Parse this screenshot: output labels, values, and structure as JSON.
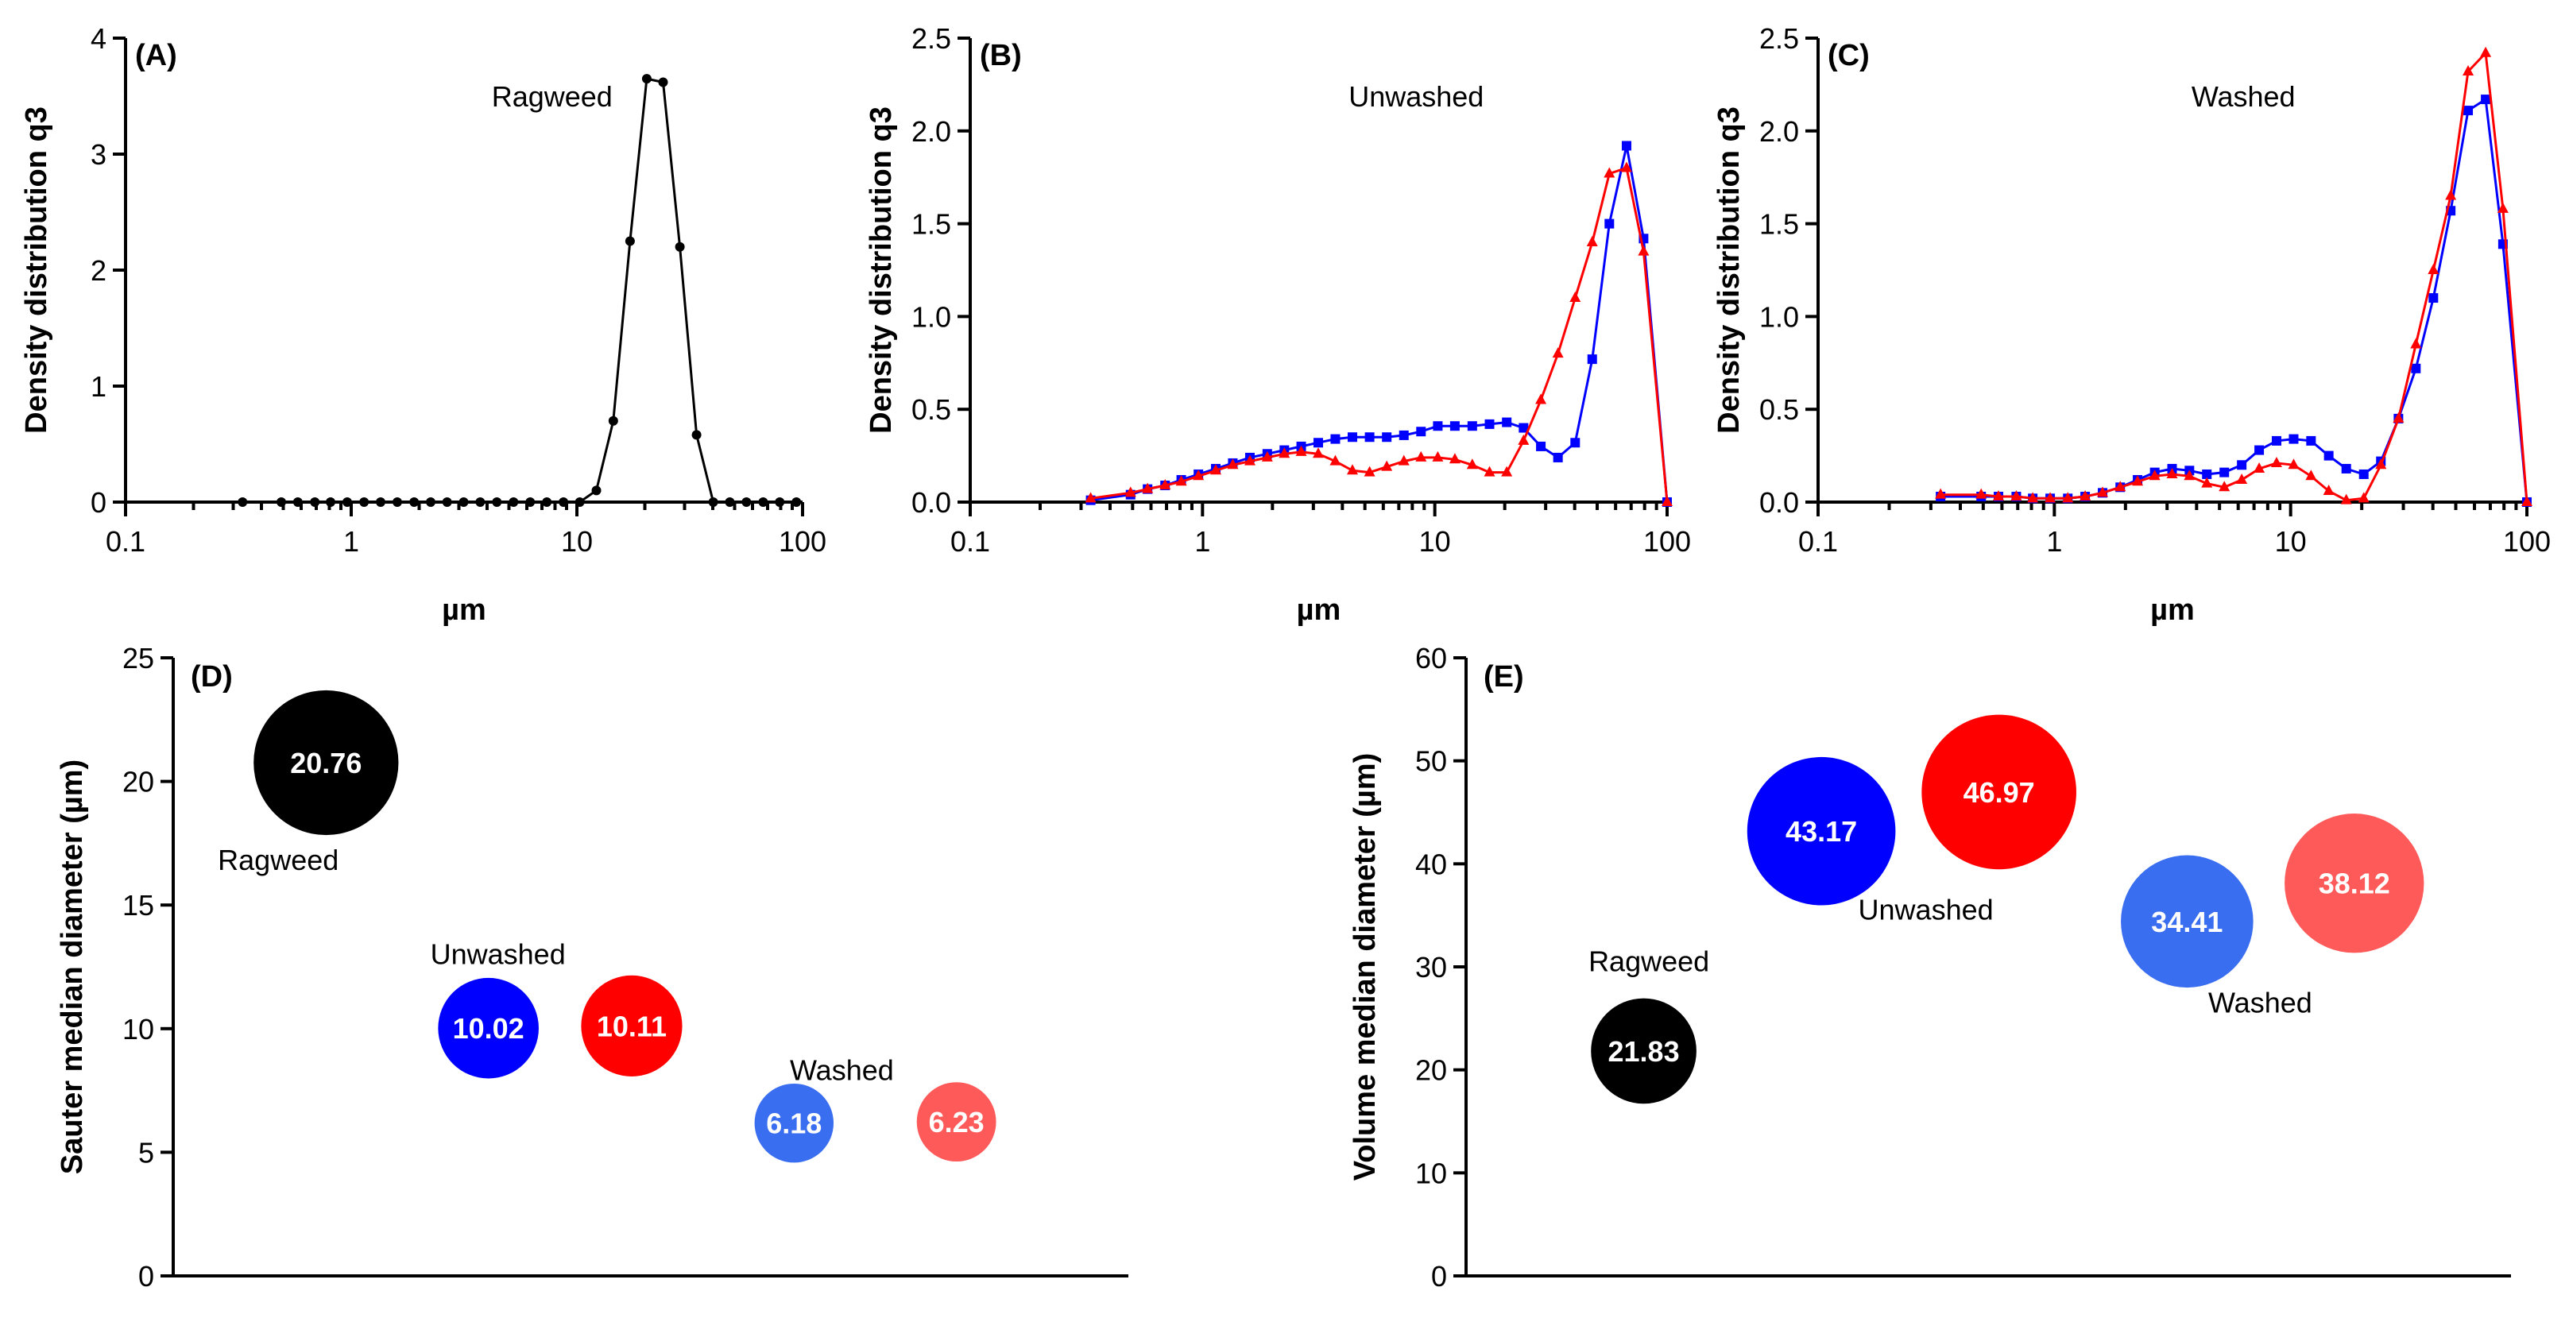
{
  "colors": {
    "ragweed": "#000000",
    "unwashed_a": "#0000ff",
    "unwashed_b": "#ff0000",
    "washed_a": "#3a6ef0",
    "washed_b": "#ff5a5a"
  },
  "chart_data": [
    {
      "id": "A",
      "type": "line",
      "panel_label": "(A)",
      "annotation": "Ragweed",
      "xlabel": "µm",
      "ylabel": "Density distribution q3",
      "xscale": "log",
      "xlim": [
        0.1,
        100
      ],
      "ylim": [
        0,
        4
      ],
      "xticks": [
        0.1,
        1,
        10,
        100
      ],
      "xtick_labels": [
        "0.1",
        "1",
        "10",
        "100"
      ],
      "yticks": [
        0,
        1,
        2,
        3,
        4
      ],
      "ytick_labels": [
        "0",
        "1",
        "2",
        "3",
        "4"
      ],
      "series": [
        {
          "name": "Ragweed",
          "color": "#000000",
          "marker": "circle",
          "x": [
            0.33,
            0.49,
            0.58,
            0.69,
            0.81,
            0.96,
            1.14,
            1.35,
            1.6,
            1.9,
            2.25,
            2.66,
            3.15,
            3.73,
            4.42,
            5.24,
            6.21,
            7.36,
            8.72,
            10.3,
            12.2,
            14.5,
            17.2,
            20.4,
            24.1,
            28.6,
            33.9,
            40.2,
            47.6,
            56.4,
            66.9,
            79.2,
            93.9
          ],
          "y": [
            0,
            0,
            0,
            0,
            0,
            0,
            0,
            0,
            0,
            0,
            0,
            0,
            0,
            0,
            0,
            0,
            0,
            0,
            0,
            0,
            0.1,
            0.7,
            2.25,
            3.65,
            3.62,
            2.2,
            0.58,
            0,
            0,
            0,
            0,
            0,
            0
          ]
        }
      ]
    },
    {
      "id": "B",
      "type": "line",
      "panel_label": "(B)",
      "annotation": "Unwashed",
      "xlabel": "µm",
      "ylabel": "Density distribution q3",
      "xscale": "log",
      "xlim": [
        0.1,
        100
      ],
      "ylim": [
        0,
        2.5
      ],
      "xticks": [
        0.1,
        1,
        10,
        100
      ],
      "xtick_labels": [
        "0.1",
        "1",
        "10",
        "100"
      ],
      "yticks": [
        0,
        0.5,
        1,
        1.5,
        2,
        2.5
      ],
      "ytick_labels": [
        "0.0",
        "0.5",
        "1.0",
        "1.5",
        "2.0",
        "2.5"
      ],
      "series": [
        {
          "name": "Unwashed (blue)",
          "color": "#0000ff",
          "marker": "square",
          "x": [
            0.33,
            0.49,
            0.58,
            0.69,
            0.81,
            0.96,
            1.14,
            1.35,
            1.6,
            1.9,
            2.25,
            2.66,
            3.15,
            3.73,
            4.42,
            5.24,
            6.21,
            7.36,
            8.72,
            10.3,
            12.2,
            14.5,
            17.2,
            20.4,
            24.1,
            28.6,
            33.9,
            40.2,
            47.6,
            56.4,
            66.9,
            79.2,
            100
          ],
          "y": [
            0.01,
            0.04,
            0.07,
            0.09,
            0.12,
            0.15,
            0.18,
            0.21,
            0.24,
            0.26,
            0.28,
            0.3,
            0.32,
            0.34,
            0.35,
            0.35,
            0.35,
            0.36,
            0.38,
            0.41,
            0.41,
            0.41,
            0.42,
            0.43,
            0.4,
            0.3,
            0.24,
            0.32,
            0.77,
            1.5,
            1.92,
            1.42,
            0
          ]
        },
        {
          "name": "Unwashed (red)",
          "color": "#ff0000",
          "marker": "triangle",
          "x": [
            0.33,
            0.49,
            0.58,
            0.69,
            0.81,
            0.96,
            1.14,
            1.35,
            1.6,
            1.9,
            2.25,
            2.66,
            3.15,
            3.73,
            4.42,
            5.24,
            6.21,
            7.36,
            8.72,
            10.3,
            12.2,
            14.5,
            17.2,
            20.4,
            24.1,
            28.6,
            33.9,
            40.2,
            47.6,
            56.4,
            66.9,
            79.2,
            100
          ],
          "y": [
            0.02,
            0.05,
            0.07,
            0.09,
            0.11,
            0.14,
            0.17,
            0.2,
            0.22,
            0.24,
            0.26,
            0.27,
            0.26,
            0.22,
            0.17,
            0.16,
            0.19,
            0.22,
            0.24,
            0.24,
            0.23,
            0.2,
            0.16,
            0.16,
            0.33,
            0.55,
            0.8,
            1.1,
            1.4,
            1.77,
            1.8,
            1.35,
            0
          ]
        }
      ]
    },
    {
      "id": "C",
      "type": "line",
      "panel_label": "(C)",
      "annotation": "Washed",
      "xlabel": "µm",
      "ylabel": "Density distribution q3",
      "xscale": "log",
      "xlim": [
        0.1,
        100
      ],
      "ylim": [
        0,
        2.5
      ],
      "xticks": [
        0.1,
        1,
        10,
        100
      ],
      "xtick_labels": [
        "0.1",
        "1",
        "10",
        "100"
      ],
      "yticks": [
        0,
        0.5,
        1,
        1.5,
        2,
        2.5
      ],
      "ytick_labels": [
        "0.0",
        "0.5",
        "1.0",
        "1.5",
        "2.0",
        "2.5"
      ],
      "series": [
        {
          "name": "Washed (blue)",
          "color": "#0000ff",
          "marker": "square",
          "x": [
            0.33,
            0.49,
            0.58,
            0.69,
            0.81,
            0.96,
            1.14,
            1.35,
            1.6,
            1.9,
            2.25,
            2.66,
            3.15,
            3.73,
            4.42,
            5.24,
            6.21,
            7.36,
            8.72,
            10.3,
            12.2,
            14.5,
            17.2,
            20.4,
            24.1,
            28.6,
            33.9,
            40.2,
            47.6,
            56.4,
            66.9,
            79.2,
            100
          ],
          "y": [
            0.03,
            0.03,
            0.03,
            0.03,
            0.02,
            0.02,
            0.02,
            0.03,
            0.05,
            0.08,
            0.12,
            0.16,
            0.18,
            0.17,
            0.15,
            0.16,
            0.2,
            0.28,
            0.33,
            0.34,
            0.33,
            0.25,
            0.18,
            0.15,
            0.22,
            0.45,
            0.72,
            1.1,
            1.57,
            2.11,
            2.17,
            1.39,
            0
          ]
        },
        {
          "name": "Washed (red)",
          "color": "#ff0000",
          "marker": "triangle",
          "x": [
            0.33,
            0.49,
            0.58,
            0.69,
            0.81,
            0.96,
            1.14,
            1.35,
            1.6,
            1.9,
            2.25,
            2.66,
            3.15,
            3.73,
            4.42,
            5.24,
            6.21,
            7.36,
            8.72,
            10.3,
            12.2,
            14.5,
            17.2,
            20.4,
            24.1,
            28.6,
            33.9,
            40.2,
            47.6,
            56.4,
            66.9,
            79.2,
            100
          ],
          "y": [
            0.04,
            0.04,
            0.03,
            0.03,
            0.02,
            0.02,
            0.02,
            0.03,
            0.05,
            0.08,
            0.11,
            0.14,
            0.15,
            0.14,
            0.1,
            0.08,
            0.12,
            0.18,
            0.21,
            0.2,
            0.14,
            0.06,
            0.01,
            0.02,
            0.2,
            0.45,
            0.85,
            1.25,
            1.65,
            2.32,
            2.42,
            1.58,
            0
          ]
        }
      ]
    },
    {
      "id": "D",
      "type": "bubble",
      "panel_label": "(D)",
      "ylabel": "Sauter median diameter (µm)",
      "ylim": [
        0,
        25
      ],
      "yticks": [
        0,
        5,
        10,
        15,
        20,
        25
      ],
      "ytick_labels": [
        "0",
        "5",
        "10",
        "15",
        "20",
        "25"
      ],
      "x_domain": [
        0,
        10
      ],
      "bubbles": [
        {
          "group": "Ragweed",
          "value": 20.76,
          "label": "20.76",
          "x": 1.6,
          "color": "#000000"
        },
        {
          "group": "Unwashed",
          "value": 10.02,
          "label": "10.02",
          "x": 3.3,
          "color": "#0000ff"
        },
        {
          "group": "Unwashed",
          "value": 10.11,
          "label": "10.11",
          "x": 4.8,
          "color": "#ff0000"
        },
        {
          "group": "Washed",
          "value": 6.18,
          "label": "6.18",
          "x": 6.5,
          "color": "#3a6ef0"
        },
        {
          "group": "Washed",
          "value": 6.23,
          "label": "6.23",
          "x": 8.2,
          "color": "#ff5a5a"
        }
      ],
      "group_labels": [
        {
          "text": "Ragweed",
          "x": 1.1,
          "y": 16.8
        },
        {
          "text": "Unwashed",
          "x": 3.4,
          "y": 13.0
        },
        {
          "text": "Washed",
          "x": 7.0,
          "y": 8.3
        }
      ]
    },
    {
      "id": "E",
      "type": "bubble",
      "panel_label": "(E)",
      "ylabel": "Volume median diameter (µm)",
      "ylim": [
        0,
        60
      ],
      "yticks": [
        0,
        10,
        20,
        30,
        40,
        50,
        60
      ],
      "ytick_labels": [
        "0",
        "10",
        "20",
        "30",
        "40",
        "50",
        "60"
      ],
      "x_domain": [
        0,
        10
      ],
      "bubbles": [
        {
          "group": "Ragweed",
          "value": 21.83,
          "label": "21.83",
          "x": 1.7,
          "color": "#000000"
        },
        {
          "group": "Unwashed",
          "value": 43.17,
          "label": "43.17",
          "x": 3.4,
          "color": "#0000ff"
        },
        {
          "group": "Unwashed",
          "value": 46.97,
          "label": "46.97",
          "x": 5.1,
          "color": "#ff0000"
        },
        {
          "group": "Washed",
          "value": 34.41,
          "label": "34.41",
          "x": 6.9,
          "color": "#3a6ef0"
        },
        {
          "group": "Washed",
          "value": 38.12,
          "label": "38.12",
          "x": 8.5,
          "color": "#ff5a5a"
        }
      ],
      "group_labels": [
        {
          "text": "Ragweed",
          "x": 1.75,
          "y": 30.5
        },
        {
          "text": "Unwashed",
          "x": 4.4,
          "y": 35.5
        },
        {
          "text": "Washed",
          "x": 7.6,
          "y": 26.5
        }
      ]
    }
  ]
}
